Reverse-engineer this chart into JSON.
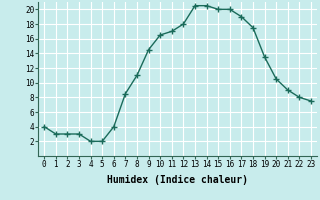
{
  "xlabel": "Humidex (Indice chaleur)",
  "x": [
    0,
    1,
    2,
    3,
    4,
    5,
    6,
    7,
    8,
    9,
    10,
    11,
    12,
    13,
    14,
    15,
    16,
    17,
    18,
    19,
    20,
    21,
    22,
    23
  ],
  "y": [
    4,
    3,
    3,
    3,
    2,
    2,
    4,
    8.5,
    11,
    14.5,
    16.5,
    17,
    18,
    20.5,
    20.5,
    20,
    20,
    19,
    17.5,
    13.5,
    10.5,
    9,
    8,
    7.5
  ],
  "line_color": "#1a6b5a",
  "marker": "+",
  "marker_size": 4,
  "marker_lw": 1.0,
  "bg_color": "#c8ecec",
  "grid_color": "#ffffff",
  "ylim": [
    0,
    21
  ],
  "xlim": [
    -0.5,
    23.5
  ],
  "yticks": [
    2,
    4,
    6,
    8,
    10,
    12,
    14,
    16,
    18,
    20
  ],
  "xticks": [
    0,
    1,
    2,
    3,
    4,
    5,
    6,
    7,
    8,
    9,
    10,
    11,
    12,
    13,
    14,
    15,
    16,
    17,
    18,
    19,
    20,
    21,
    22,
    23
  ],
  "xtick_labels": [
    "0",
    "1",
    "2",
    "3",
    "4",
    "5",
    "6",
    "7",
    "8",
    "9",
    "10",
    "11",
    "12",
    "13",
    "14",
    "15",
    "16",
    "17",
    "18",
    "19",
    "20",
    "21",
    "22",
    "23"
  ],
  "tick_fontsize": 5.5,
  "xlabel_fontsize": 7,
  "linewidth": 1.0
}
